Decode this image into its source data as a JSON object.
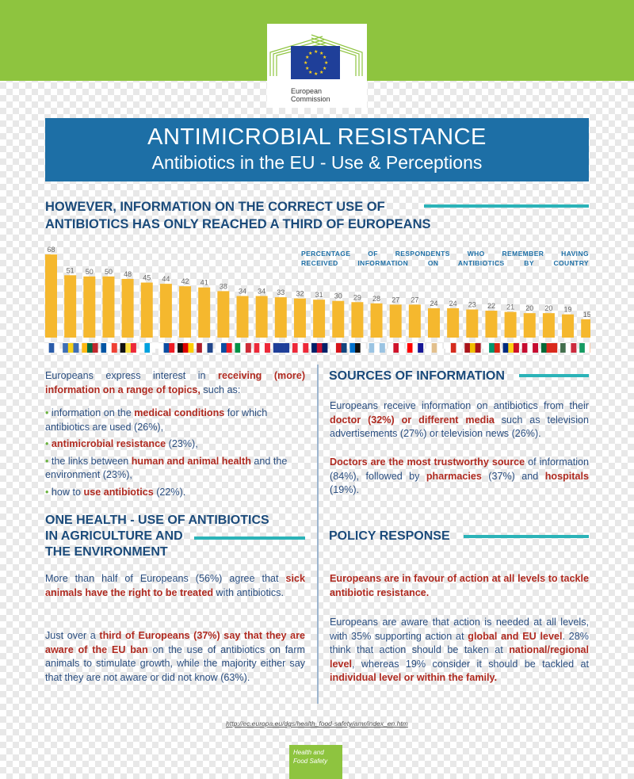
{
  "header": {
    "logo_text_line1": "European",
    "logo_text_line2": "Commission",
    "title": "ANTIMICROBIAL RESISTANCE",
    "subtitle": "Antibiotics in the EU - Use & Perceptions"
  },
  "section1": {
    "heading_line1": "HOWEVER, INFORMATION ON THE CORRECT USE OF",
    "heading_line2": "ANTIBIOTICS HAS ONLY REACHED A THIRD OF EUROPEANS",
    "chart_note_line1": "PERCENTAGE OF RESPONDENTS WHO REMEMBER HAVING",
    "chart_note_line2": "RECEIVED INFORMATION ON ANTIBIOTICS BY COUNTRY"
  },
  "chart_data": {
    "type": "bar",
    "title": "PERCENTAGE OF RESPONDENTS WHO REMEMBER HAVING RECEIVED INFORMATION ON ANTIBIOTICS BY COUNTRY",
    "values": [
      68,
      51,
      50,
      50,
      48,
      45,
      44,
      42,
      41,
      38,
      34,
      34,
      33,
      32,
      31,
      30,
      29,
      28,
      27,
      27,
      24,
      24,
      23,
      22,
      21,
      20,
      20,
      19,
      15
    ],
    "ylim": [
      0,
      70
    ],
    "bar_color": "#f5b82e",
    "grid": false
  },
  "flags": [
    [
      "#ffffff",
      "#2a5caa",
      "#ffffff"
    ],
    [
      "#3d6fb6",
      "#f7d117",
      "#3d6fb6"
    ],
    [
      "#fdb913",
      "#006a44",
      "#c1272d"
    ],
    [
      "#0055a4",
      "#ffffff",
      "#ef4135"
    ],
    [
      "#111111",
      "#fae042",
      "#ed2939"
    ],
    [
      "#ffffff",
      "#00a1de",
      "#ffffff"
    ],
    [
      "#ffffff",
      "#0b4ea2",
      "#ee1c25"
    ],
    [
      "#111111",
      "#dd0000",
      "#ffce00"
    ],
    [
      "#ae1c28",
      "#ffffff",
      "#21468b"
    ],
    [
      "#ffffff",
      "#0b4ea2",
      "#ee1c25"
    ],
    [
      "#009246",
      "#ffffff",
      "#ce2b37"
    ],
    [
      "#ed2939",
      "#ffffff",
      "#ed2939"
    ],
    [
      "#1f3f99",
      "#1f3f99",
      "#1f3f99"
    ],
    [
      "#ed2939",
      "#ffffff",
      "#ed2939"
    ],
    [
      "#012169",
      "#c8102e",
      "#012169"
    ],
    [
      "#ffffff",
      "#d7141a",
      "#11457e"
    ],
    [
      "#0072ce",
      "#111111",
      "#ffffff"
    ],
    [
      "#9bc4e2",
      "#ffffff",
      "#9bc4e2"
    ],
    [
      "#ffffff",
      "#cf142b",
      "#ffffff"
    ],
    [
      "#ff0000",
      "#ffffff",
      "#171796"
    ],
    [
      "#ffffff",
      "#e2c08d",
      "#ffffff"
    ],
    [
      "#ffffff",
      "#d52b1e",
      "#ffffff"
    ],
    [
      "#aa151b",
      "#f1bf00",
      "#aa151b"
    ],
    [
      "#ffffff",
      "#00966e",
      "#d62612"
    ],
    [
      "#002b7f",
      "#fcd116",
      "#ce1126"
    ],
    [
      "#c60c30",
      "#ffffff",
      "#c60c30"
    ],
    [
      "#046a38",
      "#da291c",
      "#da291c"
    ],
    [
      "#436f4d",
      "#ffffff",
      "#cd2a3e"
    ],
    [
      "#169b62",
      "#ffffff",
      "#ff883e"
    ]
  ],
  "left": {
    "intro": [
      "Europeans express interest in ",
      "receiving (more) information on a range of topics,",
      " such as:"
    ],
    "bullets": [
      [
        "information on the ",
        "medical conditions",
        " for which antibiotics are used (26%),"
      ],
      [
        "",
        "antimicrobial resistance",
        " (23%),"
      ],
      [
        "the links between ",
        "human and animal health",
        " and the environment (23%),"
      ],
      [
        "how to ",
        "use antibiotics",
        " (22%)."
      ]
    ],
    "one_health_heading_l1": "ONE HEALTH - USE OF ANTIBIOTICS",
    "one_health_heading_l2": "IN AGRICULTURE AND",
    "one_health_heading_l3": "THE ENVIRONMENT",
    "p1": [
      "More than half of Europeans (56%) agree that ",
      "sick animals have the right to be treated",
      " with antibiotics."
    ],
    "p2": [
      "Just over a ",
      "third of Europeans (37%) say that they are aware of the EU ban",
      " on the use of antibiotics on farm animals to stimulate growth, while the majority either say that they are not aware or did not know (63%)."
    ]
  },
  "right": {
    "sources_heading": "SOURCES OF INFORMATION",
    "s1": [
      "Europeans receive information on antibiotics from their ",
      "doctor (32%) or different media",
      " such as television advertisements (27%) or television news (26%)."
    ],
    "s2": [
      "",
      "Doctors are the most trustworthy source",
      " of information (84%), followed by ",
      "pharmacies",
      " (37%) and ",
      "hospitals",
      " (19%)."
    ],
    "policy_heading": "POLICY RESPONSE",
    "p1": [
      "",
      "Europeans are in favour of action at all levels to tackle antibiotic resistance.",
      ""
    ],
    "p2": [
      "Europeans are aware that action is needed at all levels, with 35% supporting action at ",
      "global and EU level",
      ". 28% think that action should be taken at ",
      "national/regional level",
      ", whereas 19% consider it should be tackled at ",
      "individual level or within the family.",
      ""
    ]
  },
  "footer": {
    "link": "http://ec.europa.eu/dgs/health_food-safety/amr/index_en.htm",
    "badge_l1": "Health and",
    "badge_l2": "Food Safety"
  }
}
